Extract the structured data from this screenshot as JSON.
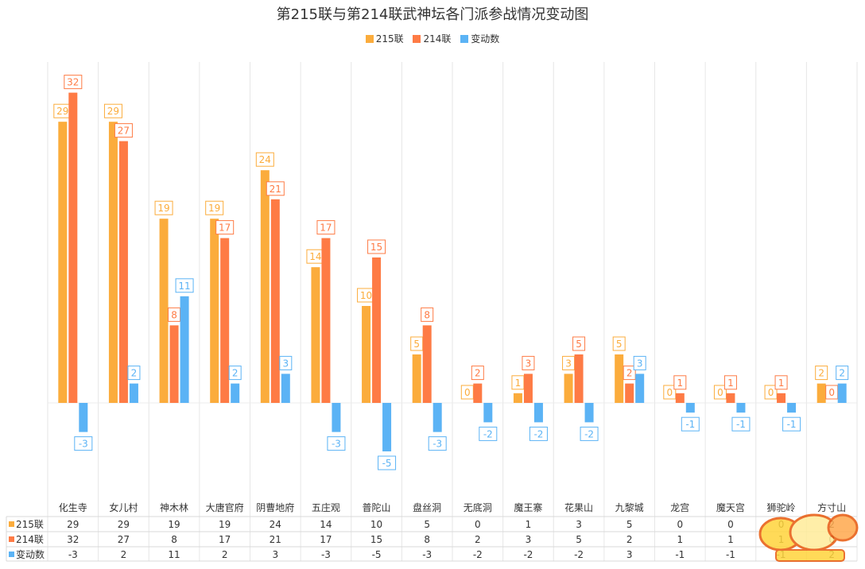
{
  "chart_data": {
    "type": "bar",
    "title": "第215联与第214联武神坛各门派参战情况变动图",
    "categories": [
      "化生寺",
      "女儿村",
      "神木林",
      "大唐官府",
      "阴曹地府",
      "五庄观",
      "普陀山",
      "盘丝洞",
      "无底洞",
      "魔王寨",
      "花果山",
      "九黎城",
      "龙宫",
      "魔天宫",
      "狮驼岭",
      "方寸山"
    ],
    "series": [
      {
        "name": "215联",
        "color": "#fbac3c",
        "values": [
          29,
          29,
          19,
          19,
          24,
          14,
          10,
          5,
          0,
          1,
          3,
          5,
          0,
          0,
          0,
          2
        ]
      },
      {
        "name": "214联",
        "color": "#fe7b45",
        "values": [
          32,
          27,
          8,
          17,
          21,
          17,
          15,
          8,
          2,
          3,
          5,
          2,
          1,
          1,
          1,
          0
        ]
      },
      {
        "name": "变动数",
        "color": "#5bb3f5",
        "values": [
          -3,
          2,
          11,
          2,
          3,
          -3,
          -5,
          -3,
          -2,
          -2,
          -2,
          3,
          -1,
          -1,
          -1,
          2
        ]
      }
    ],
    "legend_position": "top-center",
    "grid": true,
    "data_table": true
  }
}
